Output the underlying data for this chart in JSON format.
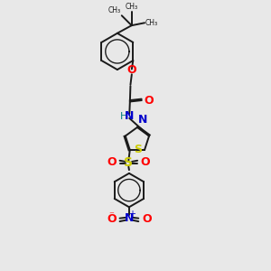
{
  "bg_color": "#e8e8e8",
  "bond_color": "#1a1a1a",
  "oxygen_color": "#ff0000",
  "nitrogen_color": "#0000cc",
  "sulfur_thiazole_color": "#cccc00",
  "sulfur_sulfonyl_color": "#cccc00",
  "nh_color": "#008080",
  "lw": 1.4,
  "dbo": 0.04,
  "xlim": [
    0,
    10
  ],
  "ylim": [
    0,
    10
  ]
}
